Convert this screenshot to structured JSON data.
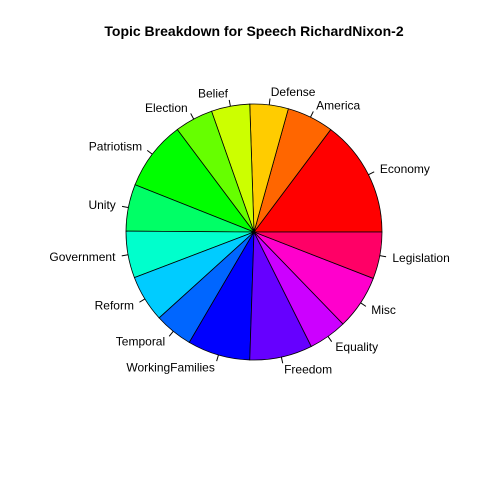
{
  "chart_data": {
    "type": "pie",
    "title": "Topic Breakdown for Speech RichardNixon-2",
    "start_angle_deg": 0,
    "direction": "counterclockwise",
    "slices": [
      {
        "label": "Economy",
        "value": 0.14,
        "color": "#FF0000"
      },
      {
        "label": "America",
        "value": 0.056,
        "color": "#FF6600"
      },
      {
        "label": "Defense",
        "value": 0.046,
        "color": "#FFCC00"
      },
      {
        "label": "Belief",
        "value": 0.046,
        "color": "#CCFF00"
      },
      {
        "label": "Election",
        "value": 0.046,
        "color": "#66FF00"
      },
      {
        "label": "Patriotism",
        "value": 0.083,
        "color": "#00FF00"
      },
      {
        "label": "Unity",
        "value": 0.056,
        "color": "#00FF66"
      },
      {
        "label": "Government",
        "value": 0.056,
        "color": "#00FFCC"
      },
      {
        "label": "Reform",
        "value": 0.056,
        "color": "#00CCFF"
      },
      {
        "label": "Temporal",
        "value": 0.046,
        "color": "#0066FF"
      },
      {
        "label": "WorkingFamilies",
        "value": 0.075,
        "color": "#0000FF"
      },
      {
        "label": "Freedom",
        "value": 0.075,
        "color": "#6600FF"
      },
      {
        "label": "Equality",
        "value": 0.046,
        "color": "#CC00FF"
      },
      {
        "label": "Misc",
        "value": 0.065,
        "color": "#FF00CC"
      },
      {
        "label": "Legislation",
        "value": 0.056,
        "color": "#FF0066"
      }
    ]
  }
}
